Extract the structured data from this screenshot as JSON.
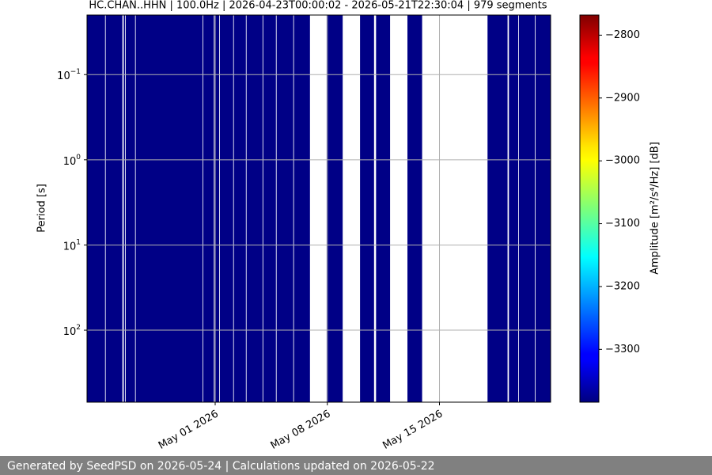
{
  "chart_data": {
    "type": "spectrogram",
    "title": "HC.CHAN..HHN | 100.0Hz | 2026-04-23T00:00:02 - 2026-05-21T22:30:04 | 979 segments",
    "ylabel": "Period [s]",
    "colorbar_label": "Amplitude [m²/s⁴/Hz] [dB]",
    "colormap": "jet",
    "y_log": true,
    "y_inverted": true,
    "grid": true,
    "xlim": [
      "2026-04-23T00:00:02",
      "2026-05-21T22:30:04"
    ],
    "xticks": [
      {
        "value": "2026-05-01T00:00",
        "label": "May 01 2026"
      },
      {
        "value": "2026-05-08T00:00",
        "label": "May 08 2026"
      },
      {
        "value": "2026-05-15T00:00",
        "label": "May 15 2026"
      }
    ],
    "ylim": [
      0.02,
      700
    ],
    "yticks": [
      {
        "value": 0.1,
        "label": "10",
        "exponent": "−1"
      },
      {
        "value": 1,
        "label": "10",
        "exponent": "0"
      },
      {
        "value": 10,
        "label": "10",
        "exponent": "1"
      },
      {
        "value": 100,
        "label": "10",
        "exponent": "2"
      }
    ],
    "clim": [
      -3384,
      -2768
    ],
    "cticks": [
      {
        "value": -2800,
        "label": "−2800"
      },
      {
        "value": -2900,
        "label": "−2900"
      },
      {
        "value": -3000,
        "label": "−3000"
      },
      {
        "value": -3100,
        "label": "−3100"
      },
      {
        "value": -3200,
        "label": "−3200"
      },
      {
        "value": -3300,
        "label": "−3300"
      }
    ],
    "segments": [
      {
        "start": "2026-04-23T00:00",
        "end": "2026-04-24T03:00",
        "value": -3380
      },
      {
        "start": "2026-04-24T04:00",
        "end": "2026-04-25T05:00",
        "value": -3380
      },
      {
        "start": "2026-04-25T07:00",
        "end": "2026-04-25T09:00",
        "value": -3380
      },
      {
        "start": "2026-04-25T10:00",
        "end": "2026-04-26T00:00",
        "value": -3380
      },
      {
        "start": "2026-04-26T01:00",
        "end": "2026-04-30T05:00",
        "value": -3380
      },
      {
        "start": "2026-04-30T06:00",
        "end": "2026-04-30T22:00",
        "value": -3380
      },
      {
        "start": "2026-04-30T23:00",
        "end": "2026-05-01T06:00",
        "value": -3380
      },
      {
        "start": "2026-05-01T07:00",
        "end": "2026-05-02T03:00",
        "value": -3380
      },
      {
        "start": "2026-05-02T04:00",
        "end": "2026-05-02T22:00",
        "value": -3380
      },
      {
        "start": "2026-05-02T23:00",
        "end": "2026-05-03T23:00",
        "value": -3380
      },
      {
        "start": "2026-05-04T00:00",
        "end": "2026-05-04T19:00",
        "value": -3380
      },
      {
        "start": "2026-05-04T20:00",
        "end": "2026-05-05T21:00",
        "value": -3380
      },
      {
        "start": "2026-05-05T22:00",
        "end": "2026-05-06T22:00",
        "value": -3380
      },
      {
        "start": "2026-05-07T23:00",
        "end": "2026-05-08T23:00",
        "value": -3380
      },
      {
        "start": "2026-05-10T01:00",
        "end": "2026-05-10T22:00",
        "value": -3380
      },
      {
        "start": "2026-05-11T01:00",
        "end": "2026-05-11T22:00",
        "value": -3380
      },
      {
        "start": "2026-05-13T00:00",
        "end": "2026-05-13T22:00",
        "value": -3380
      },
      {
        "start": "2026-05-18T00:00",
        "end": "2026-05-19T06:00",
        "value": -3380
      },
      {
        "start": "2026-05-19T08:00",
        "end": "2026-05-19T22:00",
        "value": -3380
      },
      {
        "start": "2026-05-19T23:00",
        "end": "2026-05-20T23:00",
        "value": -3380
      },
      {
        "start": "2026-05-21T00:00",
        "end": "2026-05-21T22:00",
        "value": -3380
      }
    ],
    "footer": "Generated by SeedPSD on 2026-05-24 | Calculations updated on 2026-05-22"
  }
}
